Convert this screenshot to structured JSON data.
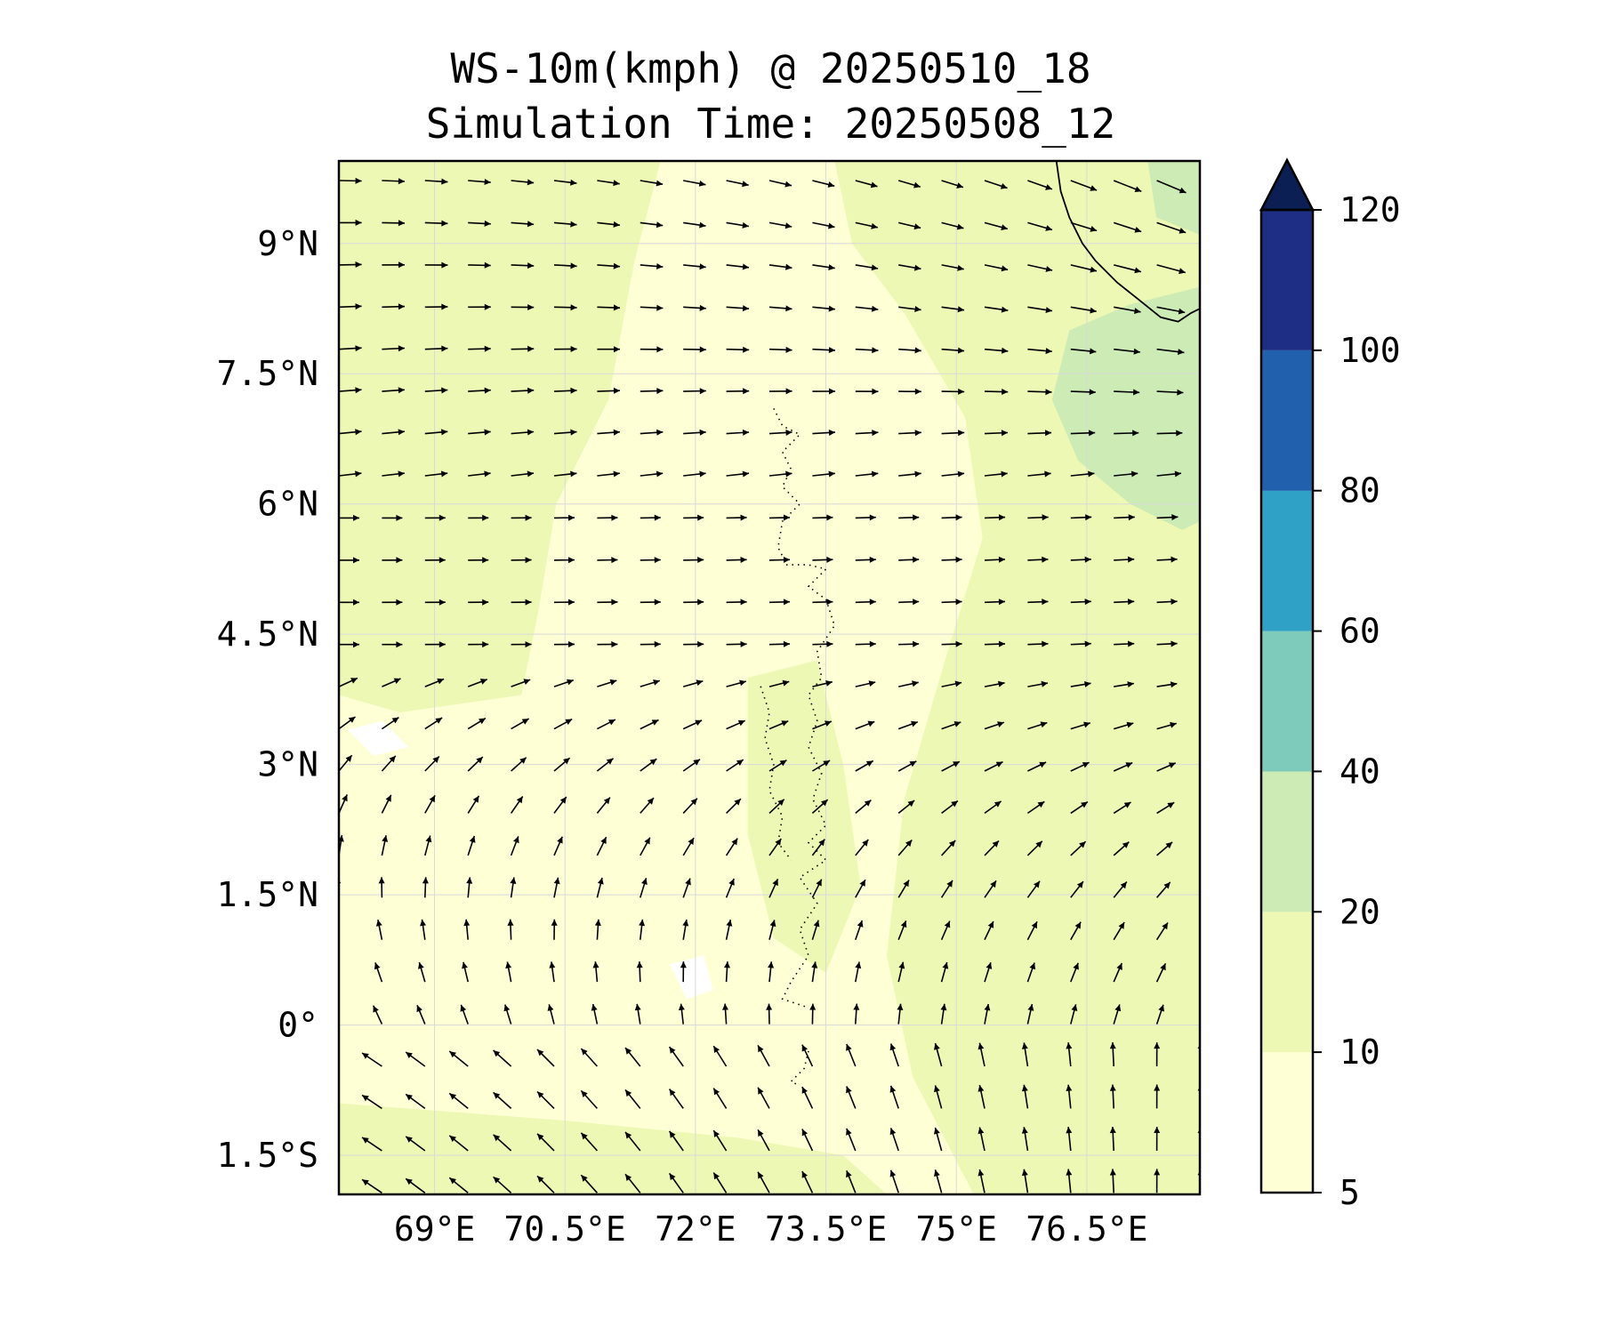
{
  "map": {
    "title_line1": "WS-10m(kmph) @ 20250510_18",
    "title_line2": "Simulation Time: 20250508_12",
    "extent": {
      "lon_min": 67.9,
      "lon_max": 77.8,
      "lat_min": -1.95,
      "lat_max": 9.95
    },
    "lat_ticks": [
      {
        "value": 9.0,
        "label": "9°N"
      },
      {
        "value": 7.5,
        "label": "7.5°N"
      },
      {
        "value": 6.0,
        "label": "6°N"
      },
      {
        "value": 4.5,
        "label": "4.5°N"
      },
      {
        "value": 3.0,
        "label": "3°N"
      },
      {
        "value": 1.5,
        "label": "1.5°N"
      },
      {
        "value": 0.0,
        "label": "0°"
      },
      {
        "value": -1.5,
        "label": "1.5°S"
      }
    ],
    "lon_ticks": [
      {
        "value": 69.0,
        "label": "69°E"
      },
      {
        "value": 70.5,
        "label": "70.5°E"
      },
      {
        "value": 72.0,
        "label": "72°E"
      },
      {
        "value": 73.5,
        "label": "73.5°E"
      },
      {
        "value": 75.0,
        "label": "75°E"
      },
      {
        "value": 76.5,
        "label": "76.5°E"
      }
    ],
    "gridlines": true,
    "colorbar": {
      "levels": [
        5,
        10,
        20,
        40,
        60,
        80,
        100,
        120
      ],
      "labels": [
        "5",
        "10",
        "20",
        "40",
        "60",
        "80",
        "100",
        "120"
      ],
      "colors": [
        "#ffffd6",
        "#edf8b4",
        "#cdebb4",
        "#7fcbbb",
        "#2fa1c6",
        "#2060ac",
        "#1d2e84"
      ],
      "extend_color": "#0b1f54",
      "extend": "max"
    },
    "colors": {
      "frame": "#000000",
      "grid": "#d9d9d9",
      "arrow": "#000000",
      "coast": "#000000"
    }
  }
}
